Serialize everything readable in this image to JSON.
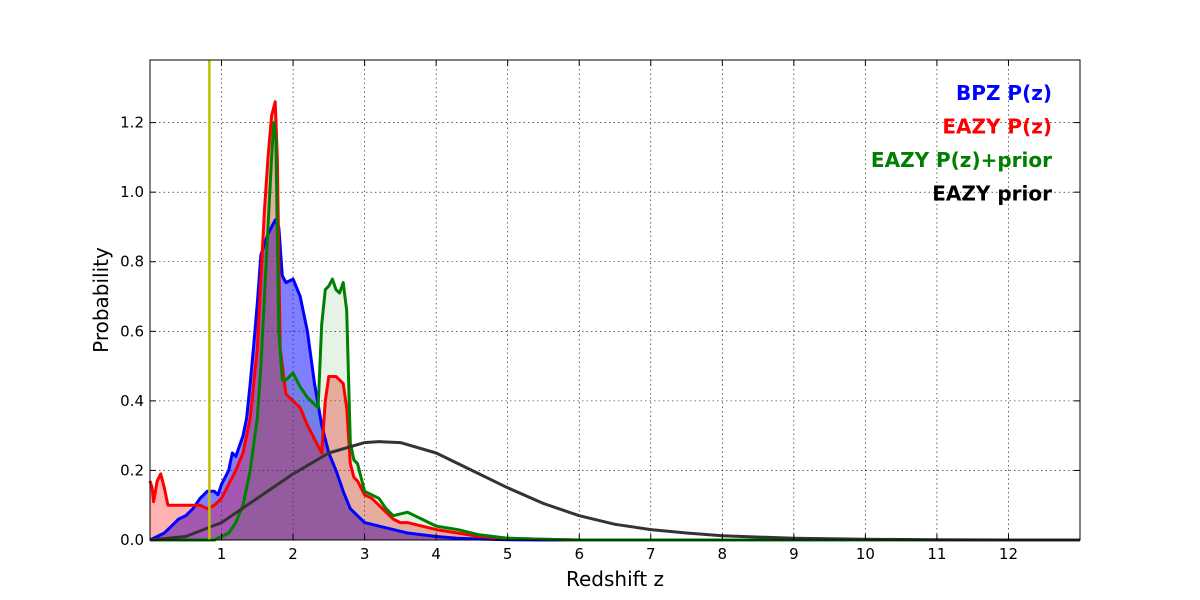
{
  "chart_data": {
    "type": "area",
    "xlabel": "Redshift z",
    "ylabel": "Probability",
    "xlim": [
      0,
      13
    ],
    "ylim": [
      0,
      1.38
    ],
    "x_ticks": [
      1,
      2,
      3,
      4,
      5,
      6,
      7,
      8,
      9,
      10,
      11,
      12
    ],
    "y_ticks": [
      0.0,
      0.2,
      0.4,
      0.6,
      0.8,
      1.0,
      1.2
    ],
    "y_tick_labels": [
      "0.0",
      "0.2",
      "0.4",
      "0.6",
      "0.8",
      "1.0",
      "1.2"
    ],
    "grid": true,
    "legend_position": "top-right",
    "vertical_line": {
      "x": 0.83,
      "color": "#bfbf00"
    },
    "series": [
      {
        "name": "BPZ P(z)",
        "color": "#0000ff",
        "filled": true,
        "x": [
          0.0,
          0.1,
          0.2,
          0.3,
          0.4,
          0.5,
          0.6,
          0.7,
          0.75,
          0.8,
          0.9,
          0.95,
          1.0,
          1.1,
          1.15,
          1.2,
          1.3,
          1.35,
          1.4,
          1.45,
          1.5,
          1.55,
          1.6,
          1.65,
          1.7,
          1.75,
          1.8,
          1.85,
          1.9,
          2.0,
          2.1,
          2.2,
          2.3,
          2.4,
          2.5,
          2.6,
          2.7,
          2.8,
          2.9,
          3.0,
          3.2,
          3.4,
          3.6,
          3.8,
          4.0,
          4.3,
          4.6,
          5.0,
          5.5,
          6.0,
          7.0,
          13.0
        ],
        "values": [
          0.0,
          0.01,
          0.02,
          0.04,
          0.06,
          0.07,
          0.09,
          0.12,
          0.13,
          0.14,
          0.14,
          0.13,
          0.16,
          0.2,
          0.25,
          0.24,
          0.3,
          0.35,
          0.45,
          0.56,
          0.68,
          0.82,
          0.85,
          0.88,
          0.9,
          0.92,
          0.9,
          0.76,
          0.74,
          0.75,
          0.7,
          0.6,
          0.45,
          0.33,
          0.25,
          0.2,
          0.14,
          0.09,
          0.07,
          0.05,
          0.04,
          0.03,
          0.02,
          0.015,
          0.01,
          0.005,
          0.003,
          0.001,
          0.0,
          0.0,
          0.0,
          0.0
        ]
      },
      {
        "name": "EAZY P(z)",
        "color": "#ff0000",
        "filled": true,
        "x": [
          0.0,
          0.03,
          0.05,
          0.1,
          0.15,
          0.2,
          0.25,
          0.3,
          0.4,
          0.5,
          0.6,
          0.7,
          0.8,
          0.9,
          1.0,
          1.1,
          1.2,
          1.3,
          1.4,
          1.5,
          1.55,
          1.6,
          1.65,
          1.7,
          1.75,
          1.78,
          1.82,
          1.9,
          2.0,
          2.1,
          2.2,
          2.3,
          2.4,
          2.45,
          2.5,
          2.6,
          2.7,
          2.75,
          2.8,
          2.85,
          2.9,
          3.0,
          3.1,
          3.2,
          3.3,
          3.4,
          3.5,
          3.6,
          3.8,
          4.0,
          4.3,
          4.6,
          5.0,
          5.5,
          6.0,
          13.0
        ],
        "values": [
          0.17,
          0.15,
          0.11,
          0.17,
          0.19,
          0.15,
          0.1,
          0.1,
          0.1,
          0.1,
          0.1,
          0.1,
          0.09,
          0.1,
          0.12,
          0.16,
          0.2,
          0.25,
          0.35,
          0.55,
          0.75,
          0.95,
          1.1,
          1.22,
          1.26,
          1.1,
          0.55,
          0.42,
          0.4,
          0.38,
          0.33,
          0.29,
          0.25,
          0.4,
          0.47,
          0.47,
          0.45,
          0.38,
          0.22,
          0.18,
          0.17,
          0.13,
          0.12,
          0.1,
          0.08,
          0.06,
          0.05,
          0.05,
          0.04,
          0.03,
          0.02,
          0.01,
          0.005,
          0.002,
          0.0,
          0.0
        ]
      },
      {
        "name": "EAZY P(z)+prior",
        "color": "#008000",
        "filled": true,
        "x": [
          0.0,
          0.5,
          0.9,
          1.0,
          1.1,
          1.2,
          1.3,
          1.4,
          1.5,
          1.55,
          1.6,
          1.65,
          1.7,
          1.73,
          1.76,
          1.8,
          1.85,
          1.9,
          2.0,
          2.1,
          2.2,
          2.3,
          2.35,
          2.4,
          2.45,
          2.5,
          2.55,
          2.6,
          2.65,
          2.7,
          2.75,
          2.8,
          2.85,
          2.9,
          3.0,
          3.1,
          3.2,
          3.3,
          3.4,
          3.6,
          3.8,
          4.0,
          4.3,
          4.6,
          5.0,
          5.5,
          6.0,
          13.0
        ],
        "values": [
          0.0,
          0.0,
          0.0,
          0.01,
          0.02,
          0.05,
          0.1,
          0.2,
          0.35,
          0.5,
          0.7,
          0.9,
          1.1,
          1.2,
          1.15,
          0.6,
          0.46,
          0.46,
          0.48,
          0.44,
          0.41,
          0.39,
          0.38,
          0.62,
          0.72,
          0.73,
          0.75,
          0.72,
          0.71,
          0.74,
          0.66,
          0.28,
          0.23,
          0.22,
          0.14,
          0.13,
          0.12,
          0.09,
          0.07,
          0.08,
          0.06,
          0.04,
          0.03,
          0.015,
          0.005,
          0.002,
          0.0,
          0.0
        ]
      },
      {
        "name": "EAZY prior",
        "color": "#333333",
        "filled": false,
        "x": [
          0.0,
          0.5,
          1.0,
          1.5,
          2.0,
          2.5,
          3.0,
          3.2,
          3.5,
          4.0,
          4.5,
          5.0,
          5.5,
          6.0,
          6.5,
          7.0,
          7.5,
          8.0,
          9.0,
          10.0,
          11.0,
          12.0,
          13.0
        ],
        "values": [
          0.0,
          0.01,
          0.05,
          0.12,
          0.19,
          0.25,
          0.28,
          0.283,
          0.28,
          0.25,
          0.2,
          0.15,
          0.105,
          0.07,
          0.045,
          0.03,
          0.02,
          0.012,
          0.005,
          0.002,
          0.001,
          0.0,
          0.0
        ]
      }
    ]
  }
}
